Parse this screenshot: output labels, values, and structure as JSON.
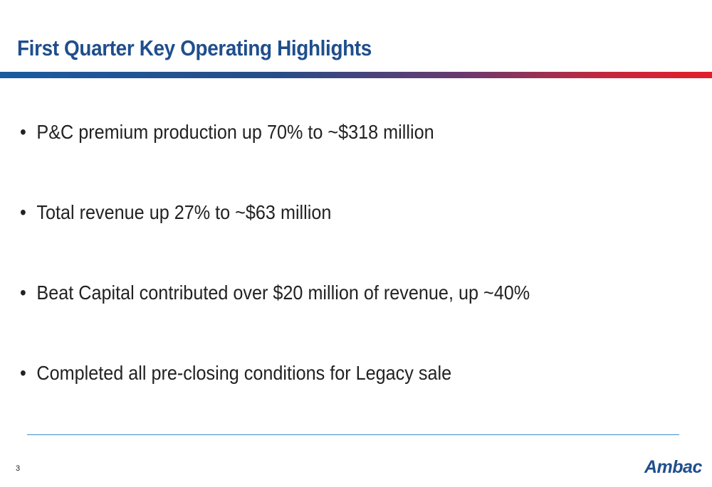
{
  "slide": {
    "title": "First Quarter Key Operating Highlights",
    "bullets": [
      "P&C premium production up 70% to ~$318 million",
      "Total revenue up 27% to ~$63 million",
      "Beat Capital contributed over $20 million of revenue, up ~40%",
      "Completed all pre-closing conditions for Legacy sale"
    ],
    "bullet_glyph": "•",
    "page_number": "3",
    "logo_text": "Ambac"
  },
  "colors": {
    "title": "#1f4e8c",
    "bar_start": "#1a5aa0",
    "bar_end": "#e31e2a",
    "rule": "#3f8fd0"
  }
}
